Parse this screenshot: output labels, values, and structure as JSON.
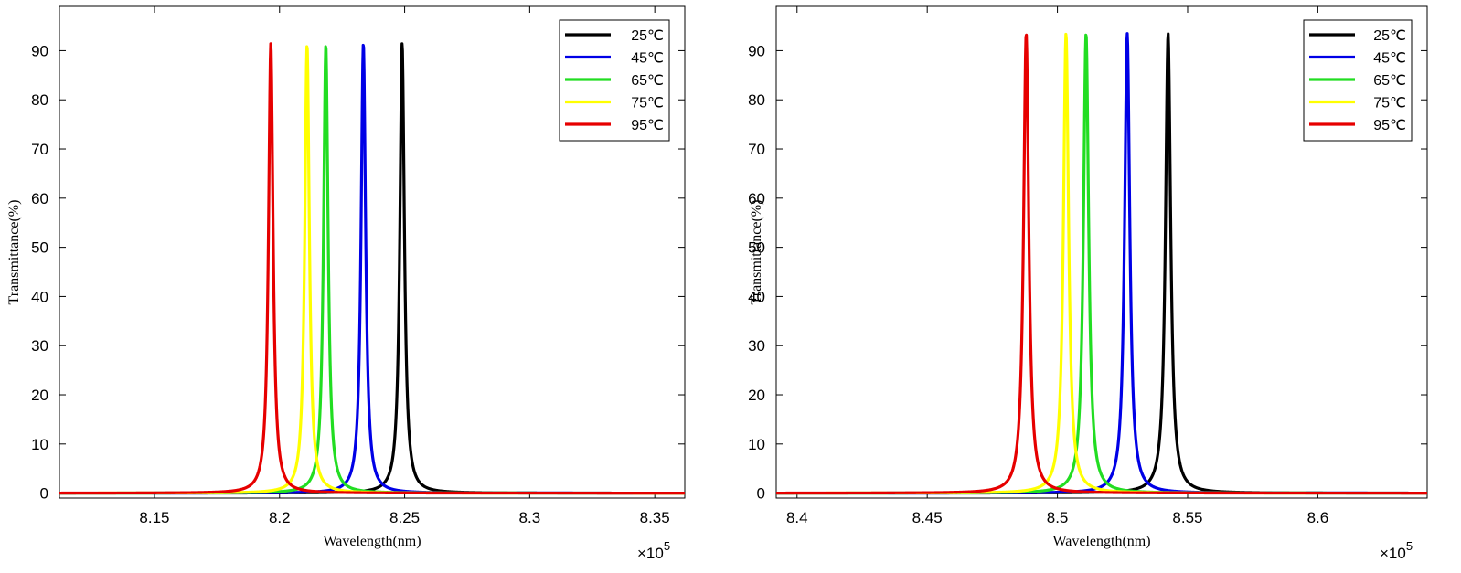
{
  "chart_data": [
    {
      "type": "line",
      "xlabel": "Wavelength(nm)",
      "ylabel": "Transmittance(%)",
      "x_multiplier_base": "×10",
      "x_multiplier_exp": "5",
      "xlim": [
        8.112,
        8.362
      ],
      "ylim": [
        -1,
        99
      ],
      "xticks": [
        8.15,
        8.2,
        8.25,
        8.3,
        8.35
      ],
      "xtick_labels": [
        "8.15",
        "8.2",
        "8.25",
        "8.3",
        "8.35"
      ],
      "yticks": [
        0,
        10,
        20,
        30,
        40,
        50,
        60,
        70,
        80,
        90
      ],
      "ytick_labels": [
        "0",
        "10",
        "20",
        "30",
        "40",
        "50",
        "60",
        "70",
        "80",
        "90"
      ],
      "legend_position": "top-right",
      "grid": false,
      "series": [
        {
          "name": "25℃",
          "color": "#000000",
          "peak_x": 8.249,
          "peak_y": 91.5,
          "half_width": 0.0011
        },
        {
          "name": "45℃",
          "color": "#0000e6",
          "peak_x": 8.2335,
          "peak_y": 91.5,
          "half_width": 0.0011
        },
        {
          "name": "65℃",
          "color": "#22dd22",
          "peak_x": 8.2185,
          "peak_y": 91.2,
          "half_width": 0.0011
        },
        {
          "name": "75℃",
          "color": "#ffff00",
          "peak_x": 8.211,
          "peak_y": 91.2,
          "half_width": 0.0011
        },
        {
          "name": "95℃",
          "color": "#e60000",
          "peak_x": 8.1965,
          "peak_y": 91.5,
          "half_width": 0.0011
        }
      ]
    },
    {
      "type": "line",
      "xlabel": "Wavelength(nm)",
      "ylabel": "Transmittance(%)",
      "x_multiplier_base": "×10",
      "x_multiplier_exp": "5",
      "xlim": [
        8.392,
        8.642
      ],
      "ylim": [
        -1,
        99
      ],
      "xticks": [
        8.4,
        8.45,
        8.5,
        8.55,
        8.6
      ],
      "xtick_labels": [
        "8.4",
        "8.45",
        "8.5",
        "8.55",
        "8.6"
      ],
      "yticks": [
        0,
        10,
        20,
        30,
        40,
        50,
        60,
        70,
        80,
        90
      ],
      "ytick_labels": [
        "0",
        "10",
        "20",
        "30",
        "40",
        "50",
        "60",
        "70",
        "80",
        "90"
      ],
      "legend_position": "top-right",
      "grid": false,
      "series": [
        {
          "name": "25℃",
          "color": "#000000",
          "peak_x": 8.5425,
          "peak_y": 93.5,
          "half_width": 0.0012
        },
        {
          "name": "45℃",
          "color": "#0000e6",
          "peak_x": 8.5268,
          "peak_y": 93.5,
          "half_width": 0.0012
        },
        {
          "name": "65℃",
          "color": "#22dd22",
          "peak_x": 8.511,
          "peak_y": 93.5,
          "half_width": 0.0012
        },
        {
          "name": "75℃",
          "color": "#ffff00",
          "peak_x": 8.5033,
          "peak_y": 93.5,
          "half_width": 0.0012
        },
        {
          "name": "95℃",
          "color": "#e60000",
          "peak_x": 8.488,
          "peak_y": 93.5,
          "half_width": 0.0012
        }
      ]
    }
  ]
}
